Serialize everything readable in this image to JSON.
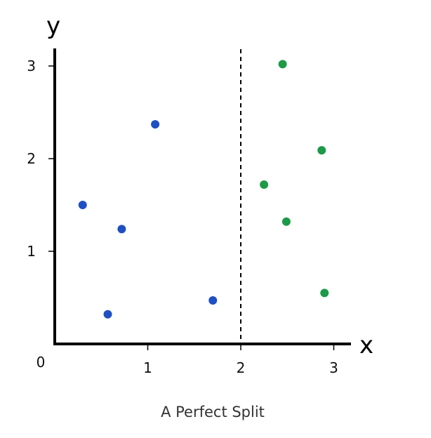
{
  "chart_data": {
    "type": "scatter",
    "title": "",
    "caption": "A Perfect Split",
    "xlabel": "x",
    "ylabel": "y",
    "xlim": [
      0,
      3.2
    ],
    "ylim": [
      0,
      3.2
    ],
    "origin_label": "0",
    "x_ticks": [
      {
        "value": 1,
        "label": "1"
      },
      {
        "value": 2,
        "label": "2"
      },
      {
        "value": 3,
        "label": "3"
      }
    ],
    "y_ticks": [
      {
        "value": 1,
        "label": "1"
      },
      {
        "value": 2,
        "label": "2"
      },
      {
        "value": 3,
        "label": "3"
      }
    ],
    "grid": false,
    "legend": "none",
    "decision_boundary": {
      "x": 2,
      "style": "dashed"
    },
    "series": [
      {
        "color": "#1f4fc4",
        "points": [
          {
            "x": 0.3,
            "y": 1.5
          },
          {
            "x": 0.72,
            "y": 1.24
          },
          {
            "x": 1.08,
            "y": 2.37
          },
          {
            "x": 0.57,
            "y": 0.32
          },
          {
            "x": 1.7,
            "y": 0.47
          }
        ]
      },
      {
        "color": "#1d9a48",
        "points": [
          {
            "x": 2.45,
            "y": 3.02
          },
          {
            "x": 2.87,
            "y": 2.09
          },
          {
            "x": 2.25,
            "y": 1.72
          },
          {
            "x": 2.49,
            "y": 1.32
          },
          {
            "x": 2.9,
            "y": 0.55
          }
        ]
      }
    ]
  }
}
